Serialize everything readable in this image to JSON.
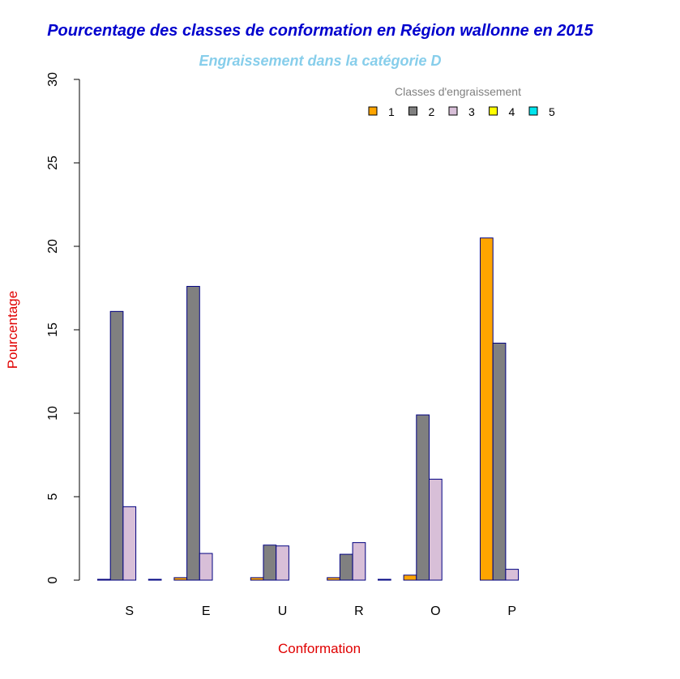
{
  "chart_data": {
    "type": "bar",
    "title": "Pourcentage des classes de conformation en Région wallonne en 2015",
    "subtitle": "Engraissement dans la catégorie D",
    "xlabel": "Conformation",
    "ylabel": "Pourcentage",
    "ylim": [
      0,
      30
    ],
    "yticks": [
      "0",
      "5",
      "10",
      "15",
      "20",
      "25",
      "30"
    ],
    "categories": [
      "S",
      "E",
      "U",
      "R",
      "O",
      "P"
    ],
    "legend_title": "Classes d'engraissement",
    "legend_position": "top-right",
    "grid": false,
    "series": [
      {
        "name": "1",
        "color": "#FFA500",
        "values": [
          0.05,
          0.15,
          0.15,
          0.15,
          0.3,
          20.5
        ]
      },
      {
        "name": "2",
        "color": "#808080",
        "values": [
          16.1,
          17.6,
          2.1,
          1.55,
          9.9,
          14.2
        ]
      },
      {
        "name": "3",
        "color": "#D8BFD8",
        "values": [
          4.4,
          1.6,
          2.05,
          2.25,
          6.05,
          0.65
        ]
      },
      {
        "name": "4",
        "color": "#FFFF00",
        "values": [
          0,
          0,
          0,
          0,
          0,
          0
        ]
      },
      {
        "name": "5",
        "color": "#00E5EE",
        "values": [
          0.05,
          0,
          0,
          0.05,
          0,
          0
        ]
      }
    ],
    "colors": {
      "title": "#0000CD",
      "subtitle": "#87CEEB",
      "axis_labels": "#E00000",
      "legend_title": "#808080",
      "bar_border": "#000080"
    }
  }
}
